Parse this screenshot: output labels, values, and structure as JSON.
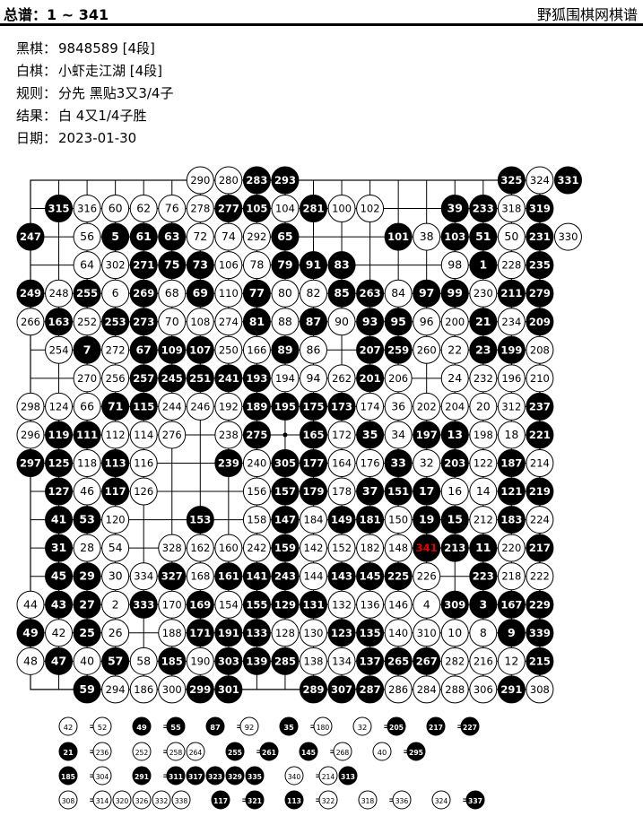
{
  "header": {
    "title_label": "总谱：",
    "title_range": "1 ~ 341",
    "site": "野狐围棋网棋谱"
  },
  "game_info": [
    {
      "label": "黑棋：",
      "value": "9848589 [4段]"
    },
    {
      "label": "白棋：",
      "value": "小虾走江湖 [4段]"
    },
    {
      "label": "规则：",
      "value": "分先  黑贴3又3/4子"
    },
    {
      "label": "结果：",
      "value": "白 4又1/4子胜"
    },
    {
      "label": "日期：",
      "value": "2023-01-30"
    }
  ],
  "highlight_move": 341,
  "board_rows": [
    "........B.WWBB.....BWB",
    ".BWWWWWBBWBWW...BBWB",
    "B.W.BBBWWWB..BWBBBWW",
    "..WWBBBWWBBB...WBWB.",
    "BWB.BWBWBWWBBW.BBWBB",
    "WBWBBWWWBWBWBBWWB.WB",
    ".WBWBBBWWBW...BBW.BBW",
    "...WWBBBBBWWWBW.WWWW",
    "WWWBBWWWBBBBBWWW.WWB",
    "WBBWWW.WB.BWBW.WBB.WWB",
    "BBWBW..BWBBWW.BWBBWB",
    ".B.WBW....WBBWBBB..WWBB",
    ".B.BW...B.WBWBBW.BBWBW",
    ".B.W...WWWBWWWWBBW.BWB",
    ".BBW..W.W..BBBWWBW.BWW",
    "WBBWB.WWBBBBBBWWWW.BWWB",
    "B.WW.WBBBWBWBWW.WWWBB",
    "WBWBW.BWBBBWWBBBWWWWB",
    ".WWWWBBW.W..BBBWWWWWBW"
  ],
  "board_numbers": [
    [
      0,
      0,
      0,
      0,
      0,
      0,
      290,
      280,
      283,
      293,
      0,
      0,
      0,
      0,
      0,
      0,
      0,
      325,
      324,
      331
    ],
    [
      0,
      315,
      316,
      60,
      62,
      76,
      278,
      277,
      105,
      104,
      281,
      100,
      102,
      0,
      0,
      39,
      233,
      318,
      319
    ],
    [
      247,
      0,
      56,
      5,
      61,
      63,
      72,
      74,
      292,
      65,
      0,
      0,
      0,
      101,
      38,
      103,
      51,
      50,
      231,
      330
    ],
    [
      0,
      0,
      64,
      302,
      271,
      75,
      73,
      106,
      78,
      79,
      91,
      83,
      0,
      0,
      0,
      98,
      1,
      228,
      235
    ],
    [
      249,
      248,
      255,
      6,
      269,
      68,
      69,
      110,
      77,
      80,
      82,
      85,
      263,
      84,
      97,
      99,
      230,
      211,
      279
    ],
    [
      266,
      163,
      252,
      253,
      273,
      70,
      108,
      274,
      81,
      88,
      87,
      90,
      93,
      95,
      96,
      200,
      21,
      234,
      209
    ],
    [
      0,
      254,
      7,
      272,
      67,
      109,
      107,
      250,
      166,
      89,
      86,
      0,
      207,
      259,
      260,
      22,
      23,
      199,
      208
    ],
    [
      0,
      0,
      270,
      256,
      257,
      245,
      251,
      241,
      193,
      194,
      94,
      262,
      201,
      206,
      0,
      24,
      232,
      196,
      210
    ],
    [
      298,
      124,
      66,
      71,
      115,
      244,
      246,
      192,
      189,
      195,
      175,
      173,
      174,
      36,
      202,
      204,
      20,
      312,
      237
    ],
    [
      296,
      119,
      111,
      112,
      114,
      276,
      0,
      238,
      275,
      0,
      165,
      172,
      35,
      34,
      197,
      13,
      198,
      18,
      221
    ],
    [
      297,
      125,
      118,
      113,
      116,
      0,
      0,
      239,
      240,
      305,
      177,
      164,
      176,
      33,
      32,
      203,
      122,
      187,
      214
    ],
    [
      0,
      127,
      46,
      117,
      126,
      0,
      0,
      0,
      156,
      157,
      179,
      178,
      37,
      151,
      17,
      16,
      14,
      121,
      219
    ],
    [
      0,
      41,
      53,
      120,
      0,
      0,
      153,
      0,
      158,
      147,
      184,
      149,
      181,
      150,
      19,
      15,
      212,
      183,
      224
    ],
    [
      0,
      31,
      28,
      54,
      0,
      328,
      162,
      160,
      242,
      159,
      142,
      152,
      182,
      148,
      341,
      213,
      11,
      220,
      217
    ],
    [
      0,
      45,
      29,
      30,
      334,
      327,
      168,
      161,
      141,
      243,
      144,
      143,
      145,
      225,
      226,
      0,
      223,
      218,
      222
    ],
    [
      44,
      43,
      27,
      2,
      333,
      170,
      169,
      154,
      155,
      129,
      131,
      132,
      136,
      146,
      4,
      309,
      3,
      167,
      229
    ],
    [
      49,
      42,
      25,
      26,
      0,
      188,
      171,
      191,
      133,
      128,
      130,
      123,
      135,
      140,
      310,
      10,
      8,
      9,
      339
    ],
    [
      48,
      47,
      40,
      57,
      58,
      185,
      190,
      303,
      139,
      285,
      138,
      134,
      137,
      265,
      267,
      282,
      216,
      12,
      215
    ],
    [
      0,
      0,
      59,
      294,
      186,
      300,
      299,
      301,
      0,
      0,
      289,
      307,
      287,
      286,
      284,
      288,
      306,
      291,
      308
    ]
  ],
  "board_rows_override": null,
  "captures": [
    [
      [
        42,
        "W"
      ],
      [
        52,
        "W"
      ],
      [
        49,
        "B"
      ],
      [
        55,
        "B"
      ],
      [
        87,
        "B"
      ],
      [
        92,
        "W"
      ],
      [
        35,
        "B"
      ],
      [
        180,
        "W"
      ],
      [
        32,
        "W"
      ],
      [
        205,
        "B"
      ],
      [
        217,
        "B"
      ],
      [
        227,
        "B"
      ]
    ],
    [
      [
        21,
        "B"
      ],
      [
        236,
        "W"
      ],
      [
        252,
        "W"
      ],
      [
        258,
        "W"
      ],
      [
        264,
        "W"
      ],
      [
        255,
        "B"
      ],
      [
        261,
        "B"
      ],
      [
        145,
        "B"
      ],
      [
        268,
        "W"
      ],
      [
        40,
        "W"
      ],
      [
        295,
        "B"
      ]
    ],
    [
      [
        185,
        "B"
      ],
      [
        304,
        "W"
      ],
      [
        291,
        "B"
      ],
      [
        311,
        "B"
      ],
      [
        317,
        "B"
      ],
      [
        323,
        "B"
      ],
      [
        329,
        "B"
      ],
      [
        335,
        "B"
      ],
      [
        340,
        "W"
      ],
      [
        214,
        "W"
      ],
      [
        313,
        "B"
      ]
    ],
    [
      [
        308,
        "W"
      ],
      [
        314,
        "W"
      ],
      [
        320,
        "W"
      ],
      [
        326,
        "W"
      ],
      [
        332,
        "W"
      ],
      [
        338,
        "W"
      ],
      [
        117,
        "B"
      ],
      [
        321,
        "B"
      ],
      [
        113,
        "B"
      ],
      [
        322,
        "W"
      ],
      [
        318,
        "W"
      ],
      [
        336,
        "W"
      ],
      [
        324,
        "W"
      ],
      [
        337,
        "B"
      ]
    ]
  ]
}
